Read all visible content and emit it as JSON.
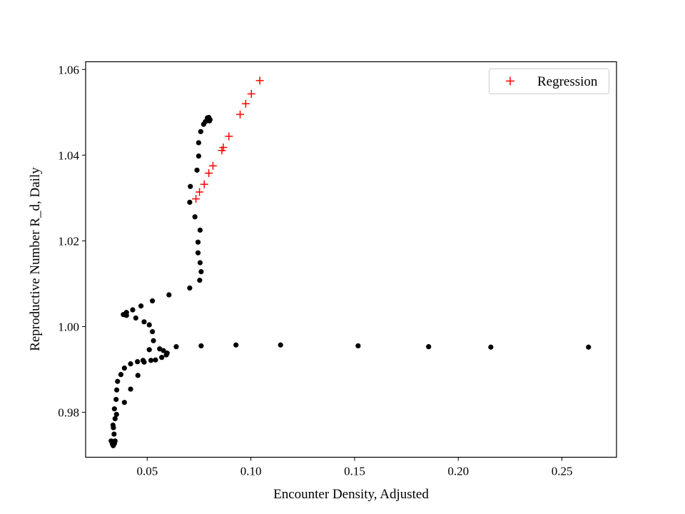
{
  "chart_data": {
    "type": "scatter",
    "title": "",
    "xlabel": "Encounter Density, Adjusted",
    "ylabel": "Reproductive Number R_d, Daily",
    "xlim": [
      0.0203,
      0.2763
    ],
    "ylim": [
      0.9695,
      1.0618
    ],
    "xticks": [
      0.05,
      0.1,
      0.15,
      0.2,
      0.25
    ],
    "xtick_labels": [
      "0.05",
      "0.10",
      "0.15",
      "0.20",
      "0.25"
    ],
    "yticks": [
      0.98,
      1.0,
      1.02,
      1.04,
      1.06
    ],
    "ytick_labels": [
      "0.98",
      "1.00",
      "1.02",
      "1.04",
      "1.06"
    ],
    "grid": false,
    "legend_position": "top-right",
    "colors": {
      "observed": "#000000",
      "regression": "#ff0000"
    },
    "series": [
      {
        "marker": "dot",
        "points": [
          [
            0.0326,
            0.9733
          ],
          [
            0.0332,
            0.9726
          ],
          [
            0.0336,
            0.9722
          ],
          [
            0.0342,
            0.9727
          ],
          [
            0.0345,
            0.9733
          ],
          [
            0.034,
            0.9749
          ],
          [
            0.0337,
            0.9764
          ],
          [
            0.0335,
            0.977
          ],
          [
            0.0345,
            0.9785
          ],
          [
            0.0352,
            0.9795
          ],
          [
            0.0342,
            0.9808
          ],
          [
            0.035,
            0.983
          ],
          [
            0.0353,
            0.9852
          ],
          [
            0.0357,
            0.9872
          ],
          [
            0.0373,
            0.9888
          ],
          [
            0.039,
            0.9903
          ],
          [
            0.042,
            0.9913
          ],
          [
            0.0453,
            0.9918
          ],
          [
            0.048,
            0.9921
          ],
          [
            0.0518,
            0.9921
          ],
          [
            0.054,
            0.9922
          ],
          [
            0.057,
            0.9928
          ],
          [
            0.0592,
            0.9934
          ],
          [
            0.0596,
            0.9938
          ],
          [
            0.0578,
            0.9944
          ],
          [
            0.056,
            0.9948
          ],
          [
            0.051,
            0.9946
          ],
          [
            0.0485,
            0.9917
          ],
          [
            0.0455,
            0.9886
          ],
          [
            0.042,
            0.9854
          ],
          [
            0.039,
            0.9823
          ],
          [
            0.053,
            0.9967
          ],
          [
            0.0525,
            0.9988
          ],
          [
            0.051,
            1.0004
          ],
          [
            0.0485,
            1.0011
          ],
          [
            0.0445,
            1.002
          ],
          [
            0.04,
            1.0026
          ],
          [
            0.0385,
            1.0028
          ],
          [
            0.04,
            1.0033
          ],
          [
            0.043,
            1.0039
          ],
          [
            0.047,
            1.0048
          ],
          [
            0.0525,
            1.006
          ],
          [
            0.0605,
            1.0074
          ],
          [
            0.0705,
            1.009
          ],
          [
            0.0753,
            1.0108
          ],
          [
            0.076,
            1.0128
          ],
          [
            0.0755,
            1.0149
          ],
          [
            0.0745,
            1.0172
          ],
          [
            0.0745,
            1.0197
          ],
          [
            0.0755,
            1.0225
          ],
          [
            0.073,
            1.0256
          ],
          [
            0.0705,
            1.029
          ],
          [
            0.0708,
            1.0327
          ],
          [
            0.074,
            1.0365
          ],
          [
            0.0748,
            1.0398
          ],
          [
            0.0748,
            1.0429
          ],
          [
            0.0758,
            1.0455
          ],
          [
            0.0772,
            1.0472
          ],
          [
            0.078,
            1.0478
          ],
          [
            0.079,
            1.0487
          ],
          [
            0.0797,
            1.0488
          ],
          [
            0.0803,
            1.0483
          ],
          [
            0.08,
            1.048
          ],
          [
            0.064,
            0.9953
          ],
          [
            0.076,
            0.9955
          ],
          [
            0.0928,
            0.9957
          ],
          [
            0.1143,
            0.9957
          ],
          [
            0.1517,
            0.9955
          ],
          [
            0.1857,
            0.9953
          ],
          [
            0.2157,
            0.9952
          ],
          [
            0.2628,
            0.9952
          ]
        ]
      },
      {
        "name": "Regression",
        "marker": "plus",
        "points": [
          [
            0.0735,
            1.0298
          ],
          [
            0.0752,
            1.0314
          ],
          [
            0.0775,
            1.0332
          ],
          [
            0.0797,
            1.0358
          ],
          [
            0.0817,
            1.0375
          ],
          [
            0.086,
            1.0411
          ],
          [
            0.0867,
            1.0418
          ],
          [
            0.0894,
            1.0444
          ],
          [
            0.0948,
            1.0495
          ],
          [
            0.0975,
            1.052
          ],
          [
            0.1002,
            1.0543
          ],
          [
            0.1043,
            1.0574
          ]
        ]
      }
    ]
  }
}
